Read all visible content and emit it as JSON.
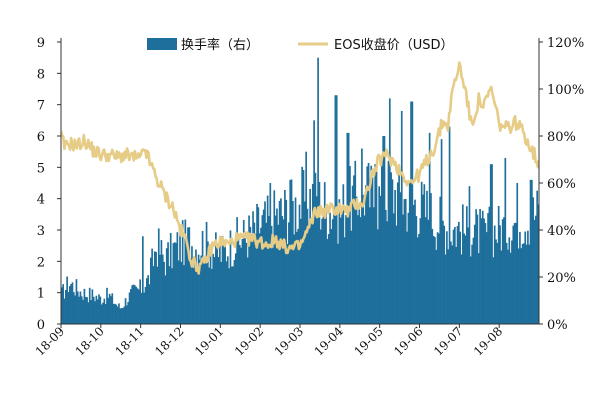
{
  "chart_data": {
    "type": "bar+line",
    "colors": {
      "bars": "#1f6f9c",
      "line": "#e6cc86"
    },
    "legend": {
      "placement": "top-center"
    },
    "series": [
      {
        "name": "换手率（右）",
        "type": "bar",
        "axis": "left",
        "unit": ""
      },
      {
        "name": "EOS收盘价（USD）",
        "type": "line",
        "axis": "right",
        "unit": "%"
      }
    ],
    "left_axis": {
      "ylim": [
        0,
        9
      ],
      "ticks": [
        "0",
        "1",
        "2",
        "3",
        "4",
        "5",
        "6",
        "7",
        "8",
        "9"
      ]
    },
    "right_axis": {
      "ylim": [
        0,
        120
      ],
      "ticks": [
        "0%",
        "20%",
        "40%",
        "60%",
        "80%",
        "100%",
        "120%"
      ]
    },
    "x_ticks": [
      "18-09",
      "18-10",
      "18-11",
      "18-12",
      "19-01",
      "19-02",
      "19-03",
      "19-04",
      "19-05",
      "19-06",
      "19-07",
      "19-08"
    ],
    "x_range": [
      0,
      12
    ],
    "bar_points": [
      [
        0,
        0.9
      ],
      [
        0.2,
        1.3
      ],
      [
        0.5,
        1.0
      ],
      [
        0.8,
        0.9
      ],
      [
        1.0,
        0.8
      ],
      [
        1.2,
        0.9
      ],
      [
        1.4,
        0.6
      ],
      [
        1.5,
        0.5
      ],
      [
        1.6,
        0.7
      ],
      [
        1.8,
        1.0
      ],
      [
        2.0,
        1.1
      ],
      [
        2.2,
        1.4
      ],
      [
        2.4,
        2.5
      ],
      [
        2.6,
        2.0
      ],
      [
        2.8,
        2.3
      ],
      [
        3.0,
        2.5
      ],
      [
        3.2,
        2.6
      ],
      [
        3.4,
        2.4
      ],
      [
        3.6,
        2.6
      ],
      [
        3.8,
        2.3
      ],
      [
        4.0,
        2.2
      ],
      [
        4.2,
        2.4
      ],
      [
        4.4,
        2.6
      ],
      [
        4.6,
        2.7
      ],
      [
        4.8,
        2.9
      ],
      [
        5.0,
        3.1
      ],
      [
        5.2,
        3.2
      ],
      [
        5.4,
        3.4
      ],
      [
        5.6,
        3.5
      ],
      [
        5.8,
        3.6
      ],
      [
        6.0,
        3.8
      ],
      [
        6.2,
        4.0
      ],
      [
        6.4,
        3.9
      ],
      [
        6.6,
        3.7
      ],
      [
        6.8,
        3.6
      ],
      [
        7.0,
        3.5
      ],
      [
        7.2,
        3.8
      ],
      [
        7.4,
        4.0
      ],
      [
        7.6,
        4.2
      ],
      [
        7.8,
        4.0
      ],
      [
        8.0,
        3.9
      ],
      [
        8.2,
        4.2
      ],
      [
        8.4,
        4.1
      ],
      [
        8.6,
        3.9
      ],
      [
        8.8,
        3.8
      ],
      [
        9.0,
        3.7
      ],
      [
        9.2,
        3.5
      ],
      [
        9.4,
        3.3
      ],
      [
        9.6,
        3.1
      ],
      [
        9.8,
        3.0
      ],
      [
        10.0,
        3.0
      ],
      [
        10.2,
        2.9
      ],
      [
        10.4,
        2.9
      ],
      [
        10.6,
        2.8
      ],
      [
        10.8,
        2.9
      ],
      [
        11.0,
        3.0
      ],
      [
        11.2,
        3.1
      ],
      [
        11.4,
        3.2
      ],
      [
        11.6,
        3.3
      ],
      [
        11.8,
        3.4
      ],
      [
        12.0,
        3.5
      ]
    ],
    "bar_spikes": [
      [
        2.05,
        2.8
      ],
      [
        2.75,
        2.5
      ],
      [
        5.25,
        4.5
      ],
      [
        5.75,
        4.6
      ],
      [
        6.15,
        5.5
      ],
      [
        6.35,
        6.5
      ],
      [
        6.45,
        8.5
      ],
      [
        6.9,
        7.3
      ],
      [
        7.2,
        6.1
      ],
      [
        7.55,
        5.6
      ],
      [
        7.9,
        5.1
      ],
      [
        8.1,
        6.0
      ],
      [
        8.25,
        7.2
      ],
      [
        8.55,
        6.8
      ],
      [
        8.8,
        7.1
      ],
      [
        9.25,
        6.1
      ],
      [
        9.55,
        5.9
      ],
      [
        9.75,
        6.3
      ],
      [
        10.25,
        4.4
      ],
      [
        10.8,
        5.1
      ],
      [
        11.15,
        5.3
      ],
      [
        11.45,
        4.5
      ],
      [
        11.8,
        4.6
      ]
    ],
    "line_points": [
      [
        0,
        80
      ],
      [
        0.1,
        75
      ],
      [
        0.2,
        77
      ],
      [
        0.4,
        76
      ],
      [
        0.6,
        78
      ],
      [
        0.8,
        74
      ],
      [
        1.0,
        72
      ],
      [
        1.2,
        72
      ],
      [
        1.4,
        71
      ],
      [
        1.6,
        72
      ],
      [
        1.8,
        71
      ],
      [
        2.0,
        70
      ],
      [
        2.1,
        75
      ],
      [
        2.2,
        70
      ],
      [
        2.3,
        66
      ],
      [
        2.4,
        62
      ],
      [
        2.6,
        55
      ],
      [
        2.8,
        50
      ],
      [
        3.0,
        40
      ],
      [
        3.1,
        37
      ],
      [
        3.2,
        32
      ],
      [
        3.3,
        26
      ],
      [
        3.5,
        24
      ],
      [
        3.6,
        26
      ],
      [
        3.8,
        33
      ],
      [
        4.0,
        35
      ],
      [
        4.2,
        34
      ],
      [
        4.4,
        36
      ],
      [
        4.6,
        36
      ],
      [
        4.8,
        36
      ],
      [
        5.0,
        35
      ],
      [
        5.2,
        34
      ],
      [
        5.4,
        36
      ],
      [
        5.6,
        33
      ],
      [
        5.8,
        32
      ],
      [
        6.0,
        33
      ],
      [
        6.2,
        40
      ],
      [
        6.4,
        48
      ],
      [
        6.6,
        48
      ],
      [
        6.8,
        49
      ],
      [
        7.0,
        49
      ],
      [
        7.2,
        48
      ],
      [
        7.4,
        51
      ],
      [
        7.6,
        52
      ],
      [
        7.8,
        63
      ],
      [
        8.0,
        70
      ],
      [
        8.2,
        72
      ],
      [
        8.4,
        68
      ],
      [
        8.6,
        63
      ],
      [
        8.8,
        60
      ],
      [
        9.0,
        64
      ],
      [
        9.2,
        70
      ],
      [
        9.4,
        76
      ],
      [
        9.6,
        87
      ],
      [
        9.7,
        83
      ],
      [
        9.8,
        96
      ],
      [
        9.9,
        104
      ],
      [
        10.0,
        110
      ],
      [
        10.1,
        104
      ],
      [
        10.2,
        95
      ],
      [
        10.3,
        84
      ],
      [
        10.4,
        90
      ],
      [
        10.5,
        96
      ],
      [
        10.6,
        92
      ],
      [
        10.8,
        100
      ],
      [
        11.0,
        85
      ],
      [
        11.2,
        83
      ],
      [
        11.4,
        86
      ],
      [
        11.6,
        82
      ],
      [
        11.8,
        75
      ],
      [
        12.0,
        68
      ]
    ]
  }
}
